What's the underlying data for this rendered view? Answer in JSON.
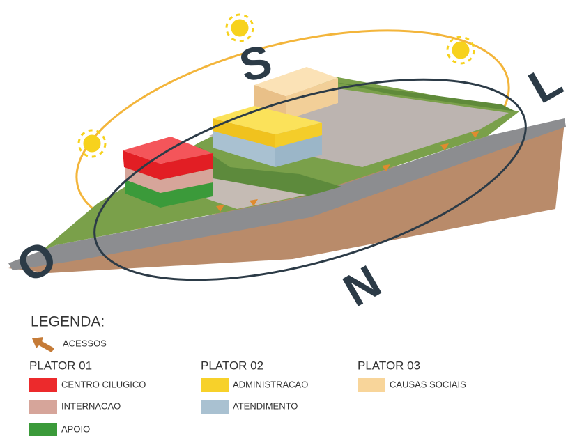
{
  "compass": {
    "south": "S",
    "east": "L",
    "north": "N",
    "west": "O"
  },
  "legend": {
    "title": "LEGENDA:",
    "access": "ACESSOS",
    "groups": [
      {
        "title": "PLATOR 01",
        "items": [
          {
            "label": "CENTRO CILUGICO",
            "color": "#ec2a2c"
          },
          {
            "label": "INTERNACAO",
            "color": "#d6a59a"
          },
          {
            "label": "APOIO",
            "color": "#3b9a3a"
          }
        ]
      },
      {
        "title": "PLATOR 02",
        "items": [
          {
            "label": "ADMINISTRACAO",
            "color": "#f7d12a"
          },
          {
            "label": "ATENDIMENTO",
            "color": "#a9c1d1"
          }
        ]
      },
      {
        "title": "PLATOR 03",
        "items": [
          {
            "label": "CAUSAS SOCIAIS",
            "color": "#f8d59a"
          }
        ]
      }
    ]
  }
}
